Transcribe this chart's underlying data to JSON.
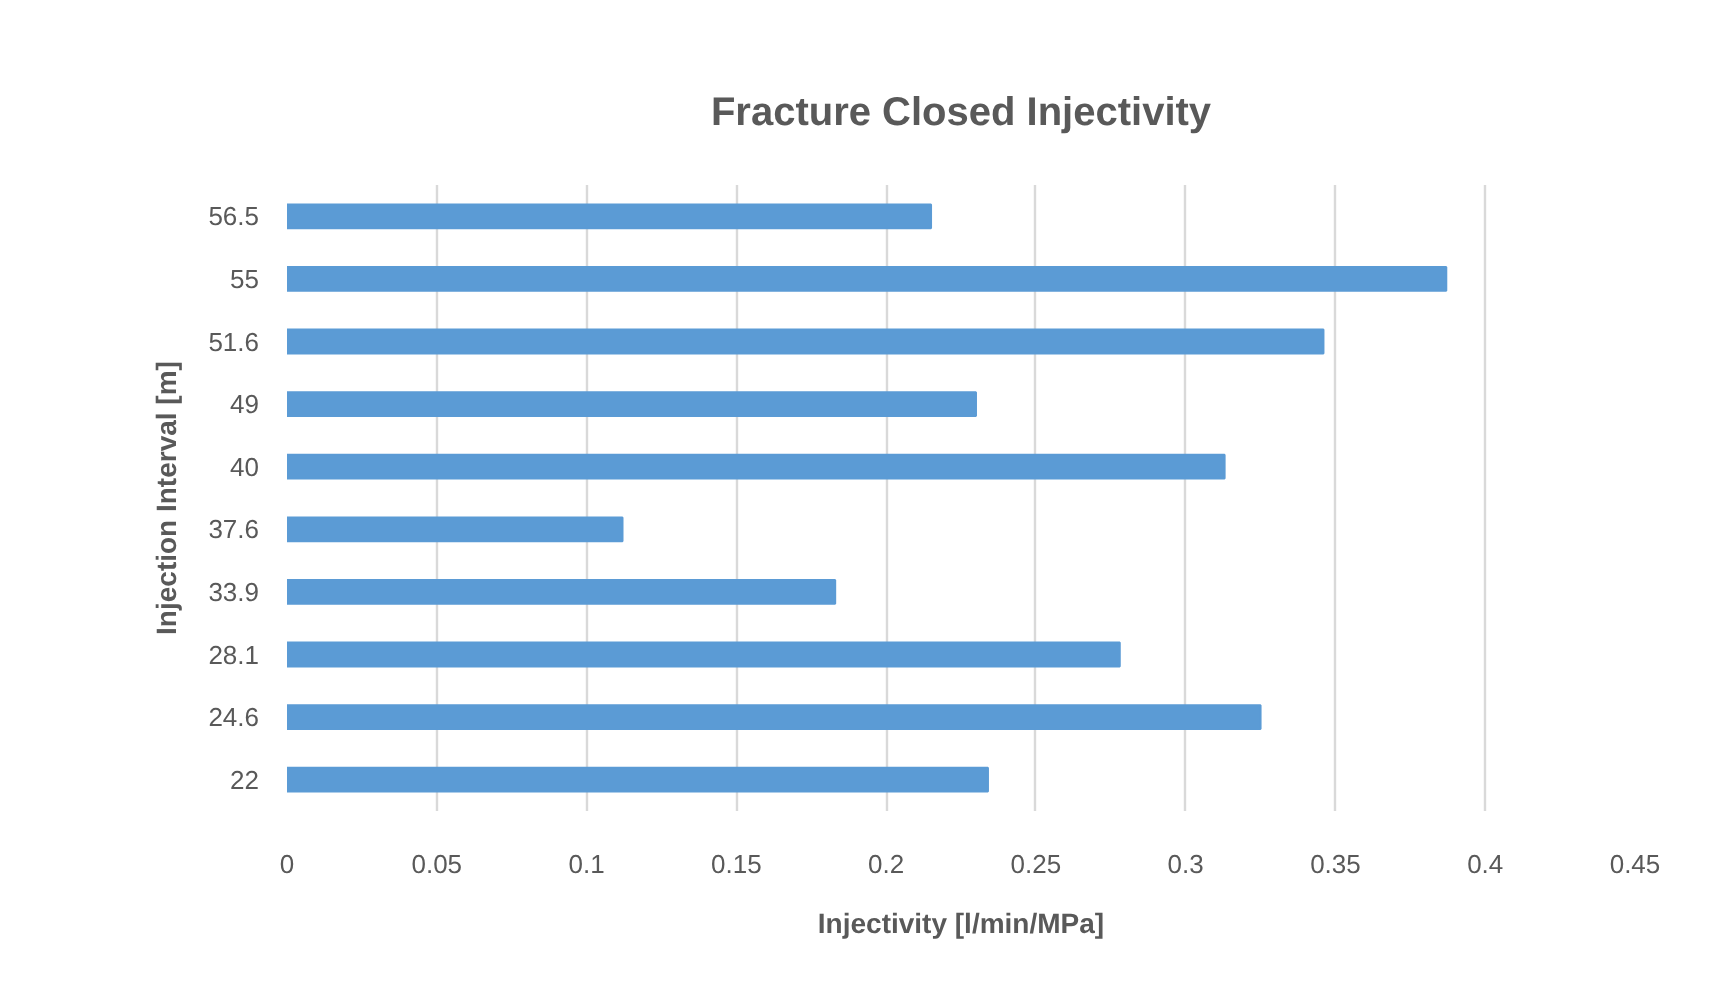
{
  "chart_data": {
    "type": "bar",
    "orientation": "horizontal",
    "title": "Fracture Closed Injectivity",
    "xlabel": "Injectivity [l/min/MPa]",
    "ylabel": "Injection Interval [m]",
    "categories": [
      "56.5",
      "55",
      "51.6",
      "49",
      "40",
      "37.6",
      "33.9",
      "28.1",
      "24.6",
      "22"
    ],
    "values": [
      0.215,
      0.387,
      0.346,
      0.23,
      0.313,
      0.112,
      0.183,
      0.278,
      0.325,
      0.234
    ],
    "color": "#5b9bd5",
    "xlim": [
      0,
      0.45
    ],
    "xticks": [
      0,
      0.05,
      0.1,
      0.15,
      0.2,
      0.25,
      0.3,
      0.35,
      0.4,
      0.45
    ],
    "grid": "x"
  }
}
